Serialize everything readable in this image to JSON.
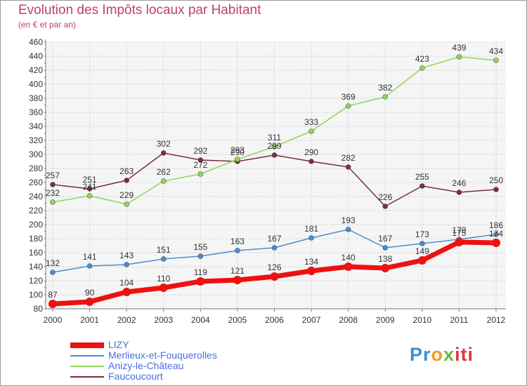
{
  "chart_data": {
    "type": "line",
    "title": "Evolution des Impôts locaux par Habitant",
    "subtitle": "(en € et par an)",
    "xlabel": "",
    "ylabel": "",
    "ylim": [
      80,
      460
    ],
    "ytick_step": 20,
    "grid": true,
    "x": [
      "2000",
      "2001",
      "2002",
      "2003",
      "2004",
      "2005",
      "2006",
      "2007",
      "2008",
      "2009",
      "2010",
      "2011",
      "2012"
    ],
    "series": [
      {
        "name": "LIZY",
        "color": "#ee1111",
        "values": [
          87,
          90,
          104,
          110,
          119,
          121,
          126,
          134,
          140,
          138,
          149,
          175,
          174
        ]
      },
      {
        "name": "Merlieux-et-Fouquerolles",
        "color": "#4a8cd0",
        "values": [
          132,
          141,
          143,
          151,
          155,
          163,
          167,
          181,
          193,
          167,
          173,
          179,
          186
        ]
      },
      {
        "name": "Anizy-le-Château",
        "color": "#8fd65a",
        "values": [
          232,
          241,
          229,
          262,
          272,
          293,
          311,
          333,
          369,
          382,
          423,
          439,
          434
        ]
      },
      {
        "name": "Faucoucourt",
        "color": "#7a2e36",
        "values": [
          257,
          251,
          263,
          302,
          292,
          290,
          299,
          290,
          282,
          226,
          255,
          246,
          250
        ]
      }
    ],
    "legend_position": "bottom-left"
  },
  "logo": {
    "parts": [
      "Pr",
      "o",
      "x",
      "iti"
    ]
  }
}
